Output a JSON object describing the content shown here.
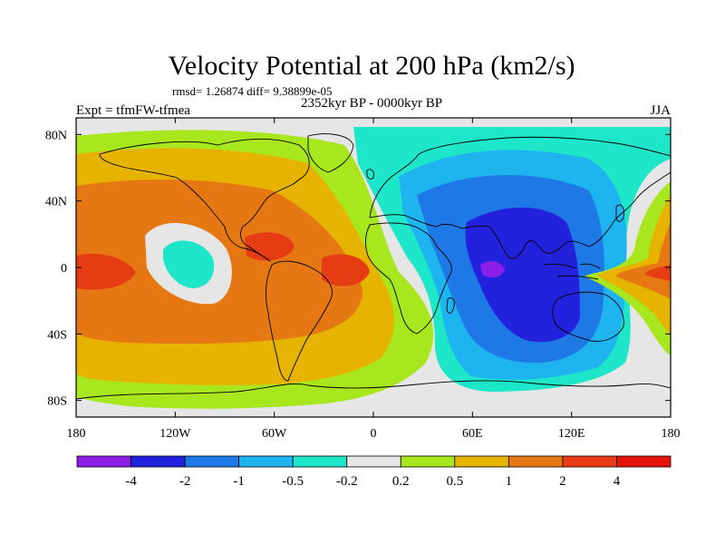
{
  "title": "Velocity Potential at 200 hPa (km2/s)",
  "stats_line": "rmsd= 1.26874 diff= 9.38899e-05",
  "left_label": "Expt = tfmFW-tfmea",
  "center_label": "2352kyr BP - 0000kyr BP",
  "right_label": "JJA",
  "map": {
    "projection": "cylindrical-equidistant",
    "lon_range": [
      -180,
      180
    ],
    "lat_range": [
      -90,
      90
    ],
    "lon_ticks": [
      {
        "value": -180,
        "label": "180"
      },
      {
        "value": -120,
        "label": "120W"
      },
      {
        "value": -60,
        "label": "60W"
      },
      {
        "value": 0,
        "label": "0"
      },
      {
        "value": 60,
        "label": "60E"
      },
      {
        "value": 120,
        "label": "120E"
      },
      {
        "value": 180,
        "label": "180"
      }
    ],
    "lat_ticks": [
      {
        "value": 80,
        "label": "80N"
      },
      {
        "value": 40,
        "label": "40N"
      },
      {
        "value": 0,
        "label": "0"
      },
      {
        "value": -40,
        "label": "40S"
      },
      {
        "value": -80,
        "label": "80S"
      }
    ]
  },
  "colorbar": {
    "colors": [
      "#8c1ee8",
      "#2222dd",
      "#1e78e6",
      "#1eb4f0",
      "#1ee6c8",
      "#e6e6e6",
      "#a8e61e",
      "#e6b400",
      "#e67814",
      "#e63c14",
      "#e6140a"
    ],
    "labels": [
      "-4",
      "-2",
      "-1",
      "-0.5",
      "-0.2",
      "0.2",
      "0.5",
      "1",
      "2",
      "4"
    ]
  }
}
